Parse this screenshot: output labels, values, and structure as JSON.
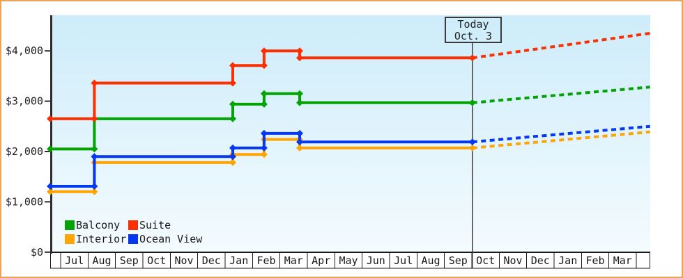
{
  "page": {
    "border_color": "#e9a55c",
    "background": "#ffffff"
  },
  "today_box": {
    "line1": "Today",
    "line2": "Oct. 3"
  },
  "chart_data": {
    "type": "line-step",
    "title": "",
    "description": "Cruise cabin price history by category with dotted future projection after today marker",
    "plot_background": {
      "top": "#cdecfa",
      "bottom": "#f4fbfe"
    },
    "grid": "off",
    "legend_position": "bottom-left-inside",
    "y_axis": {
      "min": 0,
      "max": 4700,
      "ticks": [
        {
          "label": "$0",
          "value": 0
        },
        {
          "label": "$1,000",
          "value": 1000
        },
        {
          "label": "$2,000",
          "value": 2000
        },
        {
          "label": "$3,000",
          "value": 3000
        },
        {
          "label": "$4,000",
          "value": 4000
        }
      ]
    },
    "x_axis": {
      "months": [
        "Jul",
        "Aug",
        "Sep",
        "Oct",
        "Nov",
        "Dec",
        "Jan",
        "Feb",
        "Mar",
        "Apr",
        "May",
        "Jun",
        "Jul",
        "Aug",
        "Sep",
        "Oct",
        "Nov",
        "Dec",
        "Jan",
        "Feb",
        "Mar"
      ]
    },
    "change_times_months": [
      -0.38,
      1.23,
      6.28,
      7.42,
      8.72
    ],
    "today_t": 15.02,
    "projection_end_t": 21.5,
    "today": {
      "line1": "Today",
      "line2": "Oct. 3"
    },
    "series": [
      {
        "name": "Interior",
        "color": "#ffa405",
        "values": [
          1200,
          1780,
          1940,
          2240,
          2070
        ],
        "projected_value": 2390
      },
      {
        "name": "Ocean View",
        "color": "#0538f0",
        "values": [
          1310,
          1900,
          2070,
          2360,
          2190
        ],
        "projected_value": 2500
      },
      {
        "name": "Balcony",
        "color": "#03a303",
        "values": [
          2050,
          2650,
          2940,
          3150,
          2970
        ],
        "projected_value": 3280
      },
      {
        "name": "Suite",
        "color": "#fa2f02",
        "values": [
          2650,
          3360,
          3710,
          4000,
          3860
        ],
        "projected_value": 4350
      }
    ],
    "legend_rows": [
      [
        "Balcony",
        "Suite"
      ],
      [
        "Interior",
        "Ocean View"
      ]
    ]
  }
}
